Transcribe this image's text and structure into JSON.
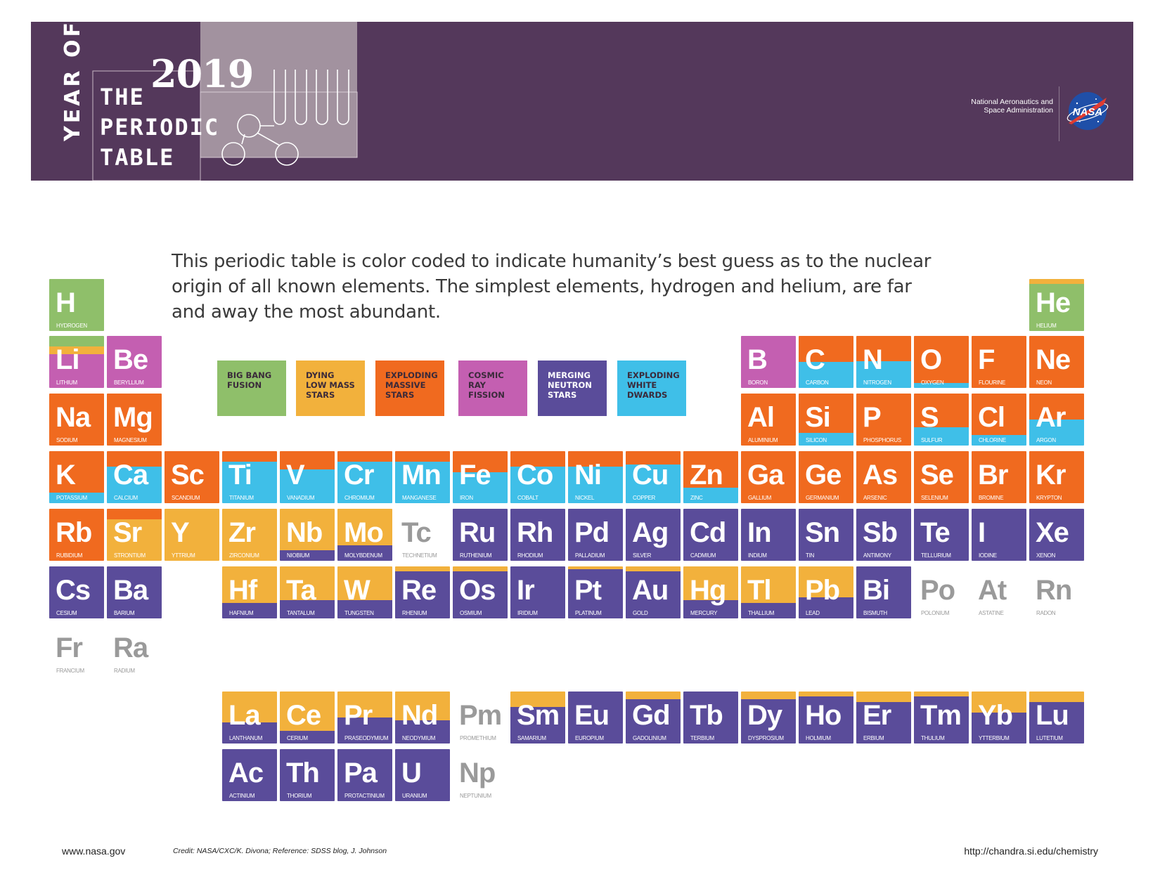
{
  "header": {
    "year_of": "YEAR OF",
    "year": "2019",
    "title_lines": [
      "THE",
      "PERIODIC",
      "TABLE"
    ],
    "agency_lines": [
      "National Aeronautics and",
      "Space Administration"
    ],
    "logo_text": "NASA"
  },
  "intro": {
    "lines": [
      "This periodic table is color coded to indicate humanity’s best guess as to the nuclear",
      "origin of all known elements.  The simplest elements, hydrogen and helium, are far",
      "and away the most abundant."
    ]
  },
  "colors": {
    "banner": "#54385b",
    "big_bang": "#8fbf6a",
    "low_mass": "#f2b13c",
    "massive": "#f06a1f",
    "cosmic_ray": "#c45fb1",
    "neutron": "#5a4c9a",
    "white_dwarf": "#3fbfe8"
  },
  "legend": [
    {
      "key": "bb",
      "label": "BIG BANG\nFUSION"
    },
    {
      "key": "lm",
      "label": "DYING\nLOW MASS\nSTARS"
    },
    {
      "key": "ms",
      "label": "EXPLODING\nMASSIVE\nSTARS"
    },
    {
      "key": "cr",
      "label": "COSMIC\nRAY\nFISSION"
    },
    {
      "key": "ns",
      "label": "MERGING\nNEUTRON\nSTARS"
    },
    {
      "key": "wd",
      "label": "EXPLODING\nWHITE\nDWARDS"
    }
  ],
  "elements": [
    {
      "s": "H",
      "n": "HYDROGEN",
      "c": 0,
      "r": 0,
      "mix": [
        [
          "bb",
          1
        ]
      ]
    },
    {
      "s": "He",
      "n": "HELIUM",
      "c": 17,
      "r": 0,
      "mix": [
        [
          "lm",
          0.1
        ],
        [
          "bb",
          0.9
        ]
      ]
    },
    {
      "s": "Li",
      "n": "LITHIUM",
      "c": 0,
      "r": 1,
      "mix": [
        [
          "bb",
          0.2
        ],
        [
          "lm",
          0.15
        ],
        [
          "cr",
          0.65
        ]
      ]
    },
    {
      "s": "Be",
      "n": "BERYLLIUM",
      "c": 1,
      "r": 1,
      "mix": [
        [
          "cr",
          1
        ]
      ]
    },
    {
      "s": "B",
      "n": "BORON",
      "c": 12,
      "r": 1,
      "mix": [
        [
          "cr",
          1
        ]
      ]
    },
    {
      "s": "C",
      "n": "CARBON",
      "c": 13,
      "r": 1,
      "mix": [
        [
          "ms",
          0.5
        ],
        [
          "wd",
          0.5
        ]
      ]
    },
    {
      "s": "N",
      "n": "NITROGEN",
      "c": 14,
      "r": 1,
      "mix": [
        [
          "ms",
          0.48
        ],
        [
          "wd",
          0.52
        ]
      ]
    },
    {
      "s": "O",
      "n": "OXYGEN",
      "c": 15,
      "r": 1,
      "mix": [
        [
          "ms",
          0.9
        ],
        [
          "wd",
          0.1
        ]
      ]
    },
    {
      "s": "F",
      "n": "FLOURINE",
      "c": 16,
      "r": 1,
      "mix": [
        [
          "ms",
          1
        ]
      ]
    },
    {
      "s": "Ne",
      "n": "NEON",
      "c": 17,
      "r": 1,
      "mix": [
        [
          "ms",
          1
        ]
      ]
    },
    {
      "s": "Na",
      "n": "SODIUM",
      "c": 0,
      "r": 2,
      "mix": [
        [
          "ms",
          1
        ]
      ]
    },
    {
      "s": "Mg",
      "n": "MAGNESIUM",
      "c": 1,
      "r": 2,
      "mix": [
        [
          "ms",
          1
        ]
      ]
    },
    {
      "s": "Al",
      "n": "ALUMINIUM",
      "c": 12,
      "r": 2,
      "mix": [
        [
          "ms",
          1
        ]
      ]
    },
    {
      "s": "Si",
      "n": "SILICON",
      "c": 13,
      "r": 2,
      "mix": [
        [
          "ms",
          0.75
        ],
        [
          "wd",
          0.25
        ]
      ]
    },
    {
      "s": "P",
      "n": "PHOSPHORUS",
      "c": 14,
      "r": 2,
      "mix": [
        [
          "ms",
          1
        ]
      ]
    },
    {
      "s": "S",
      "n": "SULFUR",
      "c": 15,
      "r": 2,
      "mix": [
        [
          "ms",
          0.65
        ],
        [
          "wd",
          0.35
        ]
      ]
    },
    {
      "s": "Cl",
      "n": "CHLORINE",
      "c": 16,
      "r": 2,
      "mix": [
        [
          "ms",
          0.8
        ],
        [
          "wd",
          0.2
        ]
      ]
    },
    {
      "s": "Ar",
      "n": "ARGON",
      "c": 17,
      "r": 2,
      "mix": [
        [
          "ms",
          0.5
        ],
        [
          "wd",
          0.5
        ]
      ]
    },
    {
      "s": "K",
      "n": "POTASSIUM",
      "c": 0,
      "r": 3,
      "mix": [
        [
          "ms",
          0.8
        ],
        [
          "wd",
          0.2
        ]
      ]
    },
    {
      "s": "Ca",
      "n": "CALCIUM",
      "c": 1,
      "r": 3,
      "mix": [
        [
          "ms",
          0.3
        ],
        [
          "wd",
          0.7
        ]
      ]
    },
    {
      "s": "Sc",
      "n": "SCANDIUM",
      "c": 2,
      "r": 3,
      "mix": [
        [
          "ms",
          1
        ]
      ]
    },
    {
      "s": "Ti",
      "n": "TITANIUM",
      "c": 3,
      "r": 3,
      "mix": [
        [
          "ms",
          0.2
        ],
        [
          "wd",
          0.8
        ]
      ]
    },
    {
      "s": "V",
      "n": "VANADIUM",
      "c": 4,
      "r": 3,
      "mix": [
        [
          "ms",
          0.35
        ],
        [
          "wd",
          0.65
        ]
      ]
    },
    {
      "s": "Cr",
      "n": "CHROMIUM",
      "c": 5,
      "r": 3,
      "mix": [
        [
          "ms",
          0.2
        ],
        [
          "wd",
          0.8
        ]
      ]
    },
    {
      "s": "Mn",
      "n": "MANGANESE",
      "c": 6,
      "r": 3,
      "mix": [
        [
          "ms",
          0.2
        ],
        [
          "wd",
          0.8
        ]
      ]
    },
    {
      "s": "Fe",
      "n": "IRON",
      "c": 7,
      "r": 3,
      "mix": [
        [
          "ms",
          0.4
        ],
        [
          "wd",
          0.6
        ]
      ]
    },
    {
      "s": "Co",
      "n": "COBALT",
      "c": 8,
      "r": 3,
      "mix": [
        [
          "ms",
          0.3
        ],
        [
          "wd",
          0.7
        ]
      ]
    },
    {
      "s": "Ni",
      "n": "NICKEL",
      "c": 9,
      "r": 3,
      "mix": [
        [
          "ms",
          0.3
        ],
        [
          "wd",
          0.7
        ]
      ]
    },
    {
      "s": "Cu",
      "n": "COPPER",
      "c": 10,
      "r": 3,
      "mix": [
        [
          "ms",
          0.25
        ],
        [
          "wd",
          0.75
        ]
      ]
    },
    {
      "s": "Zn",
      "n": "ZINC",
      "c": 11,
      "r": 3,
      "mix": [
        [
          "ms",
          0.7
        ],
        [
          "wd",
          0.3
        ]
      ]
    },
    {
      "s": "Ga",
      "n": "GALLIUM",
      "c": 12,
      "r": 3,
      "mix": [
        [
          "ms",
          1
        ]
      ]
    },
    {
      "s": "Ge",
      "n": "GERMANIUM",
      "c": 13,
      "r": 3,
      "mix": [
        [
          "ms",
          1
        ]
      ]
    },
    {
      "s": "As",
      "n": "ARSENIC",
      "c": 14,
      "r": 3,
      "mix": [
        [
          "ms",
          1
        ]
      ]
    },
    {
      "s": "Se",
      "n": "SELENIUM",
      "c": 15,
      "r": 3,
      "mix": [
        [
          "ms",
          1
        ]
      ]
    },
    {
      "s": "Br",
      "n": "BROMINE",
      "c": 16,
      "r": 3,
      "mix": [
        [
          "ms",
          1
        ]
      ]
    },
    {
      "s": "Kr",
      "n": "KRYPTON",
      "c": 17,
      "r": 3,
      "mix": [
        [
          "ms",
          1
        ]
      ]
    },
    {
      "s": "Rb",
      "n": "RUBIDIUM",
      "c": 0,
      "r": 4,
      "mix": [
        [
          "ms",
          1
        ]
      ]
    },
    {
      "s": "Sr",
      "n": "STRONTIUM",
      "c": 1,
      "r": 4,
      "mix": [
        [
          "ms",
          0.2
        ],
        [
          "lm",
          0.8
        ]
      ]
    },
    {
      "s": "Y",
      "n": "YTTRIUM",
      "c": 2,
      "r": 4,
      "mix": [
        [
          "lm",
          1
        ]
      ]
    },
    {
      "s": "Zr",
      "n": "ZIRCONIUM",
      "c": 3,
      "r": 4,
      "mix": [
        [
          "lm",
          1
        ]
      ]
    },
    {
      "s": "Nb",
      "n": "NIOBIUM",
      "c": 4,
      "r": 4,
      "mix": [
        [
          "lm",
          0.8
        ],
        [
          "ns",
          0.2
        ]
      ]
    },
    {
      "s": "Mo",
      "n": "MOLYBDENUM",
      "c": 5,
      "r": 4,
      "mix": [
        [
          "lm",
          0.7
        ],
        [
          "ns",
          0.3
        ]
      ]
    },
    {
      "s": "Tc",
      "n": "TECHNETIUM",
      "c": 6,
      "r": 4,
      "mix": []
    },
    {
      "s": "Ru",
      "n": "RUTHENIUM",
      "c": 7,
      "r": 4,
      "mix": [
        [
          "ns",
          1
        ]
      ]
    },
    {
      "s": "Rh",
      "n": "RHODIUM",
      "c": 8,
      "r": 4,
      "mix": [
        [
          "ns",
          1
        ]
      ]
    },
    {
      "s": "Pd",
      "n": "PALLADIUM",
      "c": 9,
      "r": 4,
      "mix": [
        [
          "ns",
          1
        ]
      ]
    },
    {
      "s": "Ag",
      "n": "SILVER",
      "c": 10,
      "r": 4,
      "mix": [
        [
          "ns",
          1
        ]
      ]
    },
    {
      "s": "Cd",
      "n": "CADMIUM",
      "c": 11,
      "r": 4,
      "mix": [
        [
          "ns",
          1
        ]
      ]
    },
    {
      "s": "In",
      "n": "INDIUM",
      "c": 12,
      "r": 4,
      "mix": [
        [
          "ns",
          1
        ]
      ]
    },
    {
      "s": "Sn",
      "n": "TIN",
      "c": 13,
      "r": 4,
      "mix": [
        [
          "ns",
          1
        ]
      ]
    },
    {
      "s": "Sb",
      "n": "ANTIMONY",
      "c": 14,
      "r": 4,
      "mix": [
        [
          "ns",
          1
        ]
      ]
    },
    {
      "s": "Te",
      "n": "TELLURIUM",
      "c": 15,
      "r": 4,
      "mix": [
        [
          "ns",
          1
        ]
      ]
    },
    {
      "s": "I",
      "n": "IODINE",
      "c": 16,
      "r": 4,
      "mix": [
        [
          "ns",
          1
        ]
      ]
    },
    {
      "s": "Xe",
      "n": "XENON",
      "c": 17,
      "r": 4,
      "mix": [
        [
          "ns",
          1
        ]
      ]
    },
    {
      "s": "Cs",
      "n": "CESIUM",
      "c": 0,
      "r": 5,
      "mix": [
        [
          "ns",
          1
        ]
      ]
    },
    {
      "s": "Ba",
      "n": "BARIUM",
      "c": 1,
      "r": 5,
      "mix": [
        [
          "ns",
          1
        ]
      ]
    },
    {
      "s": "Hf",
      "n": "HAFNIUM",
      "c": 3,
      "r": 5,
      "mix": [
        [
          "lm",
          0.7
        ],
        [
          "ns",
          0.3
        ]
      ]
    },
    {
      "s": "Ta",
      "n": "TANTALUM",
      "c": 4,
      "r": 5,
      "mix": [
        [
          "lm",
          0.65
        ],
        [
          "ns",
          0.35
        ]
      ]
    },
    {
      "s": "W",
      "n": "TUNGSTEN",
      "c": 5,
      "r": 5,
      "mix": [
        [
          "lm",
          0.65
        ],
        [
          "ns",
          0.35
        ]
      ]
    },
    {
      "s": "Re",
      "n": "RHENIUM",
      "c": 6,
      "r": 5,
      "mix": [
        [
          "lm",
          0.1
        ],
        [
          "ns",
          0.9
        ]
      ]
    },
    {
      "s": "Os",
      "n": "OSMIUM",
      "c": 7,
      "r": 5,
      "mix": [
        [
          "lm",
          0.1
        ],
        [
          "ns",
          0.9
        ]
      ]
    },
    {
      "s": "Ir",
      "n": "IRIDIUM",
      "c": 8,
      "r": 5,
      "mix": [
        [
          "ns",
          1
        ]
      ]
    },
    {
      "s": "Pt",
      "n": "PLATINUM",
      "c": 9,
      "r": 5,
      "mix": [
        [
          "lm",
          0.05
        ],
        [
          "ns",
          0.95
        ]
      ]
    },
    {
      "s": "Au",
      "n": "GOLD",
      "c": 10,
      "r": 5,
      "mix": [
        [
          "lm",
          0.1
        ],
        [
          "ns",
          0.9
        ]
      ]
    },
    {
      "s": "Hg",
      "n": "MERCURY",
      "c": 11,
      "r": 5,
      "mix": [
        [
          "lm",
          0.65
        ],
        [
          "ns",
          0.35
        ]
      ]
    },
    {
      "s": "Tl",
      "n": "THALLIUM",
      "c": 12,
      "r": 5,
      "mix": [
        [
          "lm",
          0.7
        ],
        [
          "ns",
          0.3
        ]
      ]
    },
    {
      "s": "Pb",
      "n": "LEAD",
      "c": 13,
      "r": 5,
      "mix": [
        [
          "lm",
          0.6
        ],
        [
          "ns",
          0.4
        ]
      ]
    },
    {
      "s": "Bi",
      "n": "BISMUTH",
      "c": 14,
      "r": 5,
      "mix": [
        [
          "ns",
          1
        ]
      ]
    },
    {
      "s": "Po",
      "n": "POLONIUM",
      "c": 15,
      "r": 5,
      "mix": []
    },
    {
      "s": "At",
      "n": "ASTATINE",
      "c": 16,
      "r": 5,
      "mix": []
    },
    {
      "s": "Rn",
      "n": "RADON",
      "c": 17,
      "r": 5,
      "mix": []
    },
    {
      "s": "Fr",
      "n": "FRANCIUM",
      "c": 0,
      "r": 6,
      "mix": []
    },
    {
      "s": "Ra",
      "n": "RADIUM",
      "c": 1,
      "r": 6,
      "mix": []
    },
    {
      "s": "La",
      "n": "LANTHANUM",
      "c": 3,
      "r": 7,
      "mix": [
        [
          "lm",
          0.6
        ],
        [
          "ns",
          0.4
        ]
      ]
    },
    {
      "s": "Ce",
      "n": "CERIUM",
      "c": 4,
      "r": 7,
      "mix": [
        [
          "lm",
          0.75
        ],
        [
          "ns",
          0.25
        ]
      ]
    },
    {
      "s": "Pr",
      "n": "PRASEODYMIUM",
      "c": 5,
      "r": 7,
      "mix": [
        [
          "lm",
          0.5
        ],
        [
          "ns",
          0.5
        ]
      ]
    },
    {
      "s": "Nd",
      "n": "NEODYMIUM",
      "c": 6,
      "r": 7,
      "mix": [
        [
          "lm",
          0.55
        ],
        [
          "ns",
          0.45
        ]
      ]
    },
    {
      "s": "Pm",
      "n": "PROMETHIUM",
      "c": 7,
      "r": 7,
      "mix": []
    },
    {
      "s": "Sm",
      "n": "SAMARIUM",
      "c": 8,
      "r": 7,
      "mix": [
        [
          "lm",
          0.3
        ],
        [
          "ns",
          0.7
        ]
      ]
    },
    {
      "s": "Eu",
      "n": "EUROPIUM",
      "c": 9,
      "r": 7,
      "mix": [
        [
          "ns",
          1
        ]
      ]
    },
    {
      "s": "Gd",
      "n": "GADOLINIUM",
      "c": 10,
      "r": 7,
      "mix": [
        [
          "lm",
          0.15
        ],
        [
          "ns",
          0.85
        ]
      ]
    },
    {
      "s": "Tb",
      "n": "TERBIUM",
      "c": 11,
      "r": 7,
      "mix": [
        [
          "ns",
          1
        ]
      ]
    },
    {
      "s": "Dy",
      "n": "DYSPROSIUM",
      "c": 12,
      "r": 7,
      "mix": [
        [
          "lm",
          0.15
        ],
        [
          "ns",
          0.85
        ]
      ]
    },
    {
      "s": "Ho",
      "n": "HOLMIUM",
      "c": 13,
      "r": 7,
      "mix": [
        [
          "lm",
          0.1
        ],
        [
          "ns",
          0.9
        ]
      ]
    },
    {
      "s": "Er",
      "n": "ERBIUM",
      "c": 14,
      "r": 7,
      "mix": [
        [
          "lm",
          0.2
        ],
        [
          "ns",
          0.8
        ]
      ]
    },
    {
      "s": "Tm",
      "n": "THULIUM",
      "c": 15,
      "r": 7,
      "mix": [
        [
          "lm",
          0.1
        ],
        [
          "ns",
          0.9
        ]
      ]
    },
    {
      "s": "Yb",
      "n": "YTTERBIUM",
      "c": 16,
      "r": 7,
      "mix": [
        [
          "lm",
          0.4
        ],
        [
          "ns",
          0.6
        ]
      ]
    },
    {
      "s": "Lu",
      "n": "LUTETIUM",
      "c": 17,
      "r": 7,
      "mix": [
        [
          "lm",
          0.2
        ],
        [
          "ns",
          0.8
        ]
      ]
    },
    {
      "s": "Ac",
      "n": "ACTINIUM",
      "c": 3,
      "r": 8,
      "mix": [
        [
          "ns",
          1
        ]
      ]
    },
    {
      "s": "Th",
      "n": "THORIUM",
      "c": 4,
      "r": 8,
      "mix": [
        [
          "ns",
          1
        ]
      ]
    },
    {
      "s": "Pa",
      "n": "PROTACTINIUM",
      "c": 5,
      "r": 8,
      "mix": [
        [
          "ns",
          1
        ]
      ]
    },
    {
      "s": "U",
      "n": "URANIUM",
      "c": 6,
      "r": 8,
      "mix": [
        [
          "ns",
          1
        ]
      ]
    },
    {
      "s": "Np",
      "n": "NEPTUNIUM",
      "c": 7,
      "r": 8,
      "mix": []
    }
  ],
  "footer": {
    "left_url": "www.nasa.gov",
    "credit": "Credit: NASA/CXC/K. Divona; Reference: SDSS blog, J. Johnson",
    "right_url": "http://chandra.si.edu/chemistry"
  }
}
